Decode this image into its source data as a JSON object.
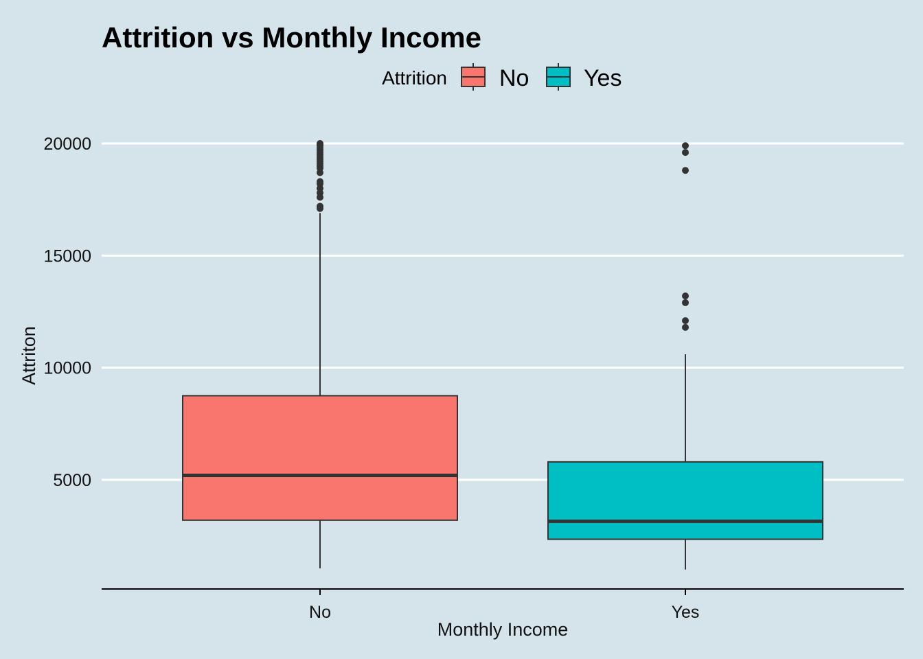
{
  "chart_data": {
    "type": "boxplot",
    "title": "Attrition vs Monthly Income",
    "xlabel": "Monthly Income",
    "ylabel": "Attriton",
    "categories": [
      "No",
      "Yes"
    ],
    "ylim": [
      0,
      20000
    ],
    "yticks": [
      5000,
      10000,
      15000,
      20000
    ],
    "ytick_labels": [
      "5000",
      "10000",
      "15000",
      "20000"
    ],
    "grid": "horizontal major lines only",
    "legend": {
      "title": "Attrition",
      "position": "top",
      "entries": [
        {
          "label": "No",
          "color": "#f8766d"
        },
        {
          "label": "Yes",
          "color": "#00bfc4"
        }
      ]
    },
    "boxes": [
      {
        "category": "No",
        "color": "#f8766d",
        "whisker_low": 1050,
        "q1": 3200,
        "median": 5200,
        "q3": 8750,
        "whisker_high": 16900,
        "outliers": [
          17100,
          17200,
          17600,
          17800,
          18000,
          18200,
          18300,
          18700,
          18900,
          19000,
          19100,
          19200,
          19300,
          19400,
          19500,
          19600,
          19700,
          19800,
          19900,
          19950,
          20000
        ]
      },
      {
        "category": "Yes",
        "color": "#00bfc4",
        "whisker_low": 1000,
        "q1": 2350,
        "median": 3150,
        "q3": 5800,
        "whisker_high": 10600,
        "outliers": [
          11800,
          12100,
          12900,
          13200,
          18800,
          19600,
          19900
        ]
      }
    ]
  }
}
